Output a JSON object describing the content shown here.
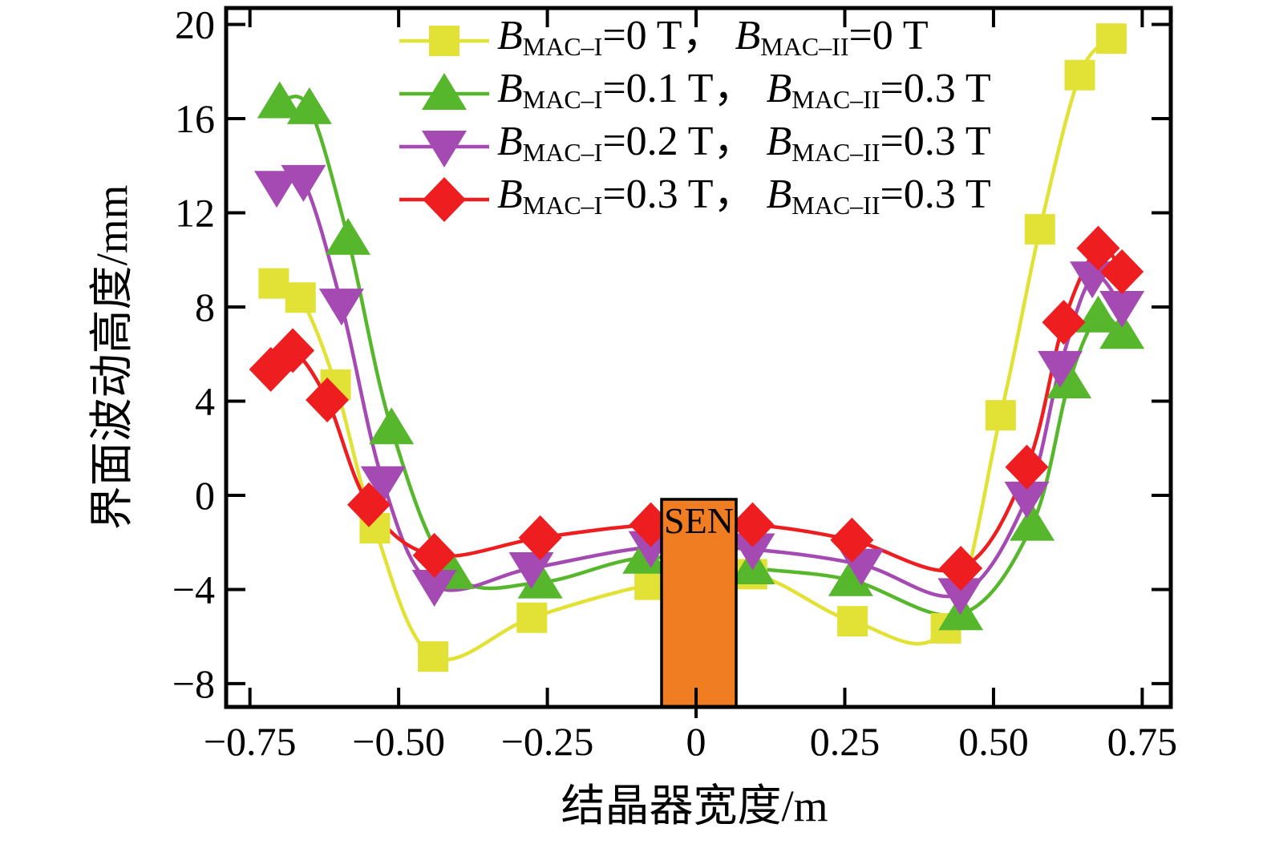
{
  "figure": {
    "background": "#ffffff"
  },
  "chart_data": {
    "type": "line",
    "title": "",
    "xlabel": "结晶器宽度/m",
    "ylabel": "界面波动高度/mm",
    "xlim": [
      -0.79,
      0.798
    ],
    "ylim": [
      -8.99,
      20.7
    ],
    "grid": false,
    "legend_position": "upper-center-inside",
    "axis_color": "#000000",
    "x_ticks": [
      -0.75,
      -0.5,
      -0.25,
      0,
      0.25,
      0.5,
      0.75
    ],
    "x_tick_labels": [
      "−0.75",
      "−0.50",
      "−0.25",
      "0",
      "0.25",
      "0.50",
      "0.75"
    ],
    "y_ticks": [
      -8,
      -4,
      0,
      4,
      8,
      12,
      16,
      20
    ],
    "y_tick_labels": [
      "−8",
      "−4",
      "0",
      "4",
      "8",
      "12",
      "16",
      "20"
    ],
    "series": [
      {
        "name": "B_MAC-I=0 T, B_MAC-II=0 T",
        "color": "#e2e135",
        "marker": "square",
        "legend": {
          "b": "B",
          "sub1": "MAC–I",
          "val1": "=0 T",
          "comma": "，",
          "sub2": "MAC–II",
          "val2": "=0 T"
        },
        "points": [
          [
            -0.71,
            9.0
          ],
          [
            -0.665,
            8.4
          ],
          [
            -0.606,
            4.7
          ],
          [
            -0.54,
            -1.4
          ],
          [
            -0.442,
            -6.85
          ],
          [
            -0.276,
            -5.2
          ],
          [
            -0.078,
            -3.8
          ],
          [
            0.094,
            -3.35
          ],
          [
            0.263,
            -5.35
          ],
          [
            0.42,
            -5.65
          ],
          [
            0.512,
            3.4
          ],
          [
            0.578,
            11.3
          ],
          [
            0.645,
            17.85
          ],
          [
            0.698,
            19.4
          ]
        ]
      },
      {
        "name": "B_MAC-I=0.1 T, B_MAC-II=0.3 T",
        "color": "#57b72c",
        "marker": "triangle-up",
        "legend": {
          "b": "B",
          "sub1": "MAC–I",
          "val1": "=0.1 T",
          "comma": "，",
          "sub2": "MAC–II",
          "val2": "=0.3 T"
        },
        "points": [
          [
            -0.7,
            16.7
          ],
          [
            -0.65,
            16.45
          ],
          [
            -0.585,
            10.9
          ],
          [
            -0.512,
            2.85
          ],
          [
            -0.41,
            -3.3
          ],
          [
            -0.262,
            -3.7
          ],
          [
            -0.086,
            -2.65
          ],
          [
            0.095,
            -3.1
          ],
          [
            0.26,
            -3.6
          ],
          [
            0.445,
            -5.05
          ],
          [
            0.565,
            -1.25
          ],
          [
            0.627,
            4.8
          ],
          [
            0.676,
            7.6
          ],
          [
            0.716,
            6.9
          ]
        ]
      },
      {
        "name": "B_MAC-I=0.2 T, B_MAC-II=0.3 T",
        "color": "#a44ab2",
        "marker": "triangle-down",
        "legend": {
          "b": "B",
          "sub1": "MAC–I",
          "val1": "=0.2 T",
          "comma": "，",
          "sub2": "MAC–II",
          "val2": "=0.3 T"
        },
        "points": [
          [
            -0.705,
            13.1
          ],
          [
            -0.66,
            13.35
          ],
          [
            -0.596,
            8.1
          ],
          [
            -0.526,
            0.55
          ],
          [
            -0.44,
            -3.85
          ],
          [
            -0.277,
            -3.1
          ],
          [
            -0.076,
            -2.2
          ],
          [
            0.095,
            -2.3
          ],
          [
            0.278,
            -2.95
          ],
          [
            0.444,
            -4.2
          ],
          [
            0.556,
            -0.1
          ],
          [
            0.612,
            5.45
          ],
          [
            0.666,
            9.25
          ],
          [
            0.716,
            8.0
          ]
        ]
      },
      {
        "name": "B_MAC-I=0.3 T, B_MAC-II=0.3 T",
        "color": "#ee1d1f",
        "marker": "diamond",
        "legend": {
          "b": "B",
          "sub1": "MAC–I",
          "val1": "=0.3 T",
          "comma": "，",
          "sub2": "MAC–II",
          "val2": "=0.3 T"
        },
        "points": [
          [
            -0.715,
            5.35
          ],
          [
            -0.678,
            6.15
          ],
          [
            -0.62,
            4.05
          ],
          [
            -0.55,
            -0.4
          ],
          [
            -0.44,
            -2.55
          ],
          [
            -0.262,
            -1.8
          ],
          [
            -0.076,
            -1.25
          ],
          [
            0.095,
            -1.25
          ],
          [
            0.262,
            -1.9
          ],
          [
            0.445,
            -3.1
          ],
          [
            0.556,
            1.2
          ],
          [
            0.618,
            7.35
          ],
          [
            0.676,
            10.5
          ],
          [
            0.716,
            9.5
          ]
        ]
      }
    ],
    "annotation": {
      "label": "SEN",
      "fill": "#f17d22",
      "border": "#000000",
      "x_left": -0.058,
      "x_right": 0.0674,
      "y_top": -0.17
    }
  }
}
